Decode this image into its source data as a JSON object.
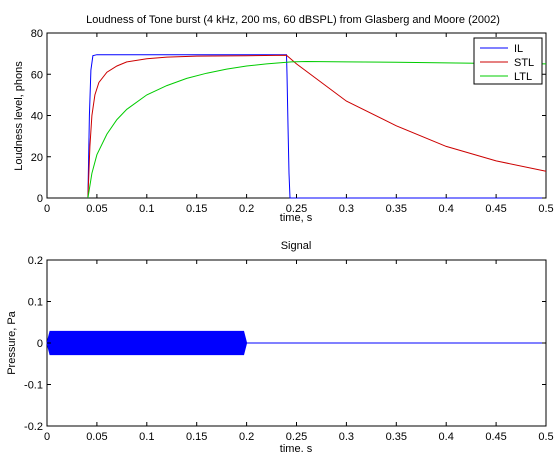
{
  "chart_data": [
    {
      "type": "line",
      "title": "Loudness of Tone burst (4 kHz, 200 ms, 60 dBSPL) from Glasberg and Moore (2002)",
      "xlabel": "time, s",
      "ylabel": "Loudness level, phons",
      "xlim": [
        0,
        0.5
      ],
      "ylim": [
        0,
        80
      ],
      "x_ticks": [
        "0",
        "0.05",
        "0.1",
        "0.15",
        "0.2",
        "0.25",
        "0.3",
        "0.35",
        "0.4",
        "0.45",
        "0.5"
      ],
      "y_ticks": [
        "0",
        "20",
        "40",
        "60",
        "80"
      ],
      "legend": {
        "placement": "top-right",
        "entries": [
          "IL",
          "STL",
          "LTL"
        ]
      },
      "grid": false,
      "series": [
        {
          "name": "IL",
          "color": "#0000ff",
          "points": [
            [
              0.041,
              0
            ],
            [
              0.0425,
              40
            ],
            [
              0.044,
              62
            ],
            [
              0.046,
              69
            ],
            [
              0.05,
              69.5
            ],
            [
              0.1,
              69.5
            ],
            [
              0.15,
              69.5
            ],
            [
              0.2,
              69.5
            ],
            [
              0.24,
              69.5
            ],
            [
              0.2405,
              60
            ],
            [
              0.2415,
              35
            ],
            [
              0.2425,
              12
            ],
            [
              0.2435,
              0
            ],
            [
              0.5,
              0
            ]
          ]
        },
        {
          "name": "STL",
          "color": "#cc0000",
          "points": [
            [
              0.041,
              0
            ],
            [
              0.043,
              25
            ],
            [
              0.045,
              40
            ],
            [
              0.048,
              50
            ],
            [
              0.052,
              56
            ],
            [
              0.06,
              61
            ],
            [
              0.07,
              64
            ],
            [
              0.08,
              66
            ],
            [
              0.1,
              67.5
            ],
            [
              0.12,
              68.3
            ],
            [
              0.15,
              68.8
            ],
            [
              0.2,
              69
            ],
            [
              0.24,
              69.2
            ],
            [
              0.25,
              65
            ],
            [
              0.3,
              47
            ],
            [
              0.35,
              35
            ],
            [
              0.4,
              25
            ],
            [
              0.45,
              18
            ],
            [
              0.5,
              13
            ]
          ]
        },
        {
          "name": "LTL",
          "color": "#00cc00",
          "points": [
            [
              0.041,
              0
            ],
            [
              0.045,
              12
            ],
            [
              0.05,
              21
            ],
            [
              0.06,
              31
            ],
            [
              0.07,
              38
            ],
            [
              0.08,
              43
            ],
            [
              0.1,
              50
            ],
            [
              0.12,
              54.5
            ],
            [
              0.14,
              58
            ],
            [
              0.16,
              60.5
            ],
            [
              0.18,
              62.5
            ],
            [
              0.2,
              64
            ],
            [
              0.22,
              65
            ],
            [
              0.245,
              66
            ],
            [
              0.26,
              66.2
            ],
            [
              0.3,
              66
            ],
            [
              0.35,
              65.8
            ],
            [
              0.4,
              65.5
            ],
            [
              0.45,
              65.2
            ],
            [
              0.5,
              65
            ]
          ]
        }
      ]
    },
    {
      "type": "area",
      "title": "Signal",
      "xlabel": "time, s",
      "ylabel": "Pressure, Pa",
      "xlim": [
        0,
        0.5
      ],
      "ylim": [
        -0.2,
        0.2
      ],
      "x_ticks": [
        "0",
        "0.05",
        "0.1",
        "0.15",
        "0.2",
        "0.25",
        "0.3",
        "0.35",
        "0.4",
        "0.45",
        "0.5"
      ],
      "y_ticks": [
        "-0.2",
        "-0.1",
        "0",
        "0.1",
        "0.2"
      ],
      "grid": false,
      "series": [
        {
          "color": "#0000ff",
          "envelope_upper": [
            [
              0,
              0
            ],
            [
              0.003,
              0.028
            ],
            [
              0.197,
              0.028
            ],
            [
              0.2,
              0
            ],
            [
              0.5,
              0
            ]
          ],
          "envelope_lower": [
            [
              0,
              0
            ],
            [
              0.003,
              -0.028
            ],
            [
              0.197,
              -0.028
            ],
            [
              0.2,
              0
            ],
            [
              0.5,
              0
            ]
          ]
        }
      ]
    }
  ]
}
